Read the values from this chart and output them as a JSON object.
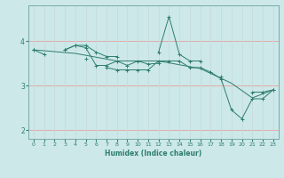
{
  "title": "",
  "xlabel": "Humidex (Indice chaleur)",
  "x": [
    0,
    1,
    2,
    3,
    4,
    5,
    6,
    7,
    8,
    9,
    10,
    11,
    12,
    13,
    14,
    15,
    16,
    17,
    18,
    19,
    20,
    21,
    22,
    23
  ],
  "line1": [
    3.8,
    3.7,
    null,
    3.8,
    3.9,
    3.9,
    3.75,
    3.65,
    3.65,
    null,
    null,
    null,
    3.75,
    4.55,
    3.7,
    3.55,
    3.55,
    null,
    3.2,
    null,
    null,
    2.85,
    2.85,
    2.9
  ],
  "line2": [
    3.8,
    null,
    null,
    3.8,
    3.9,
    3.85,
    3.45,
    3.45,
    3.55,
    3.45,
    3.55,
    3.48,
    3.5,
    null,
    null,
    null,
    null,
    null,
    null,
    null,
    null,
    null,
    null,
    null
  ],
  "line3": [
    3.8,
    null,
    null,
    null,
    null,
    3.6,
    null,
    3.4,
    3.35,
    3.35,
    3.35,
    3.35,
    3.55,
    3.55,
    3.55,
    3.4,
    3.4,
    3.3,
    3.15,
    2.45,
    2.25,
    2.7,
    2.7,
    2.9
  ],
  "line4_x": [
    0,
    4,
    8,
    12,
    16,
    19,
    21,
    23
  ],
  "line4_y": [
    3.8,
    3.72,
    3.55,
    3.55,
    3.38,
    3.05,
    2.72,
    2.9
  ],
  "color": "#2e7d6e",
  "bg_color": "#cce8e8",
  "grid_color_h": "#e8a0a0",
  "grid_color_v": "#c8dada",
  "ylim": [
    1.8,
    4.8
  ],
  "xlim": [
    -0.5,
    23.5
  ],
  "yticks": [
    2,
    3,
    4
  ],
  "xticks": [
    0,
    1,
    2,
    3,
    4,
    5,
    6,
    7,
    8,
    9,
    10,
    11,
    12,
    13,
    14,
    15,
    16,
    17,
    18,
    19,
    20,
    21,
    22,
    23
  ]
}
